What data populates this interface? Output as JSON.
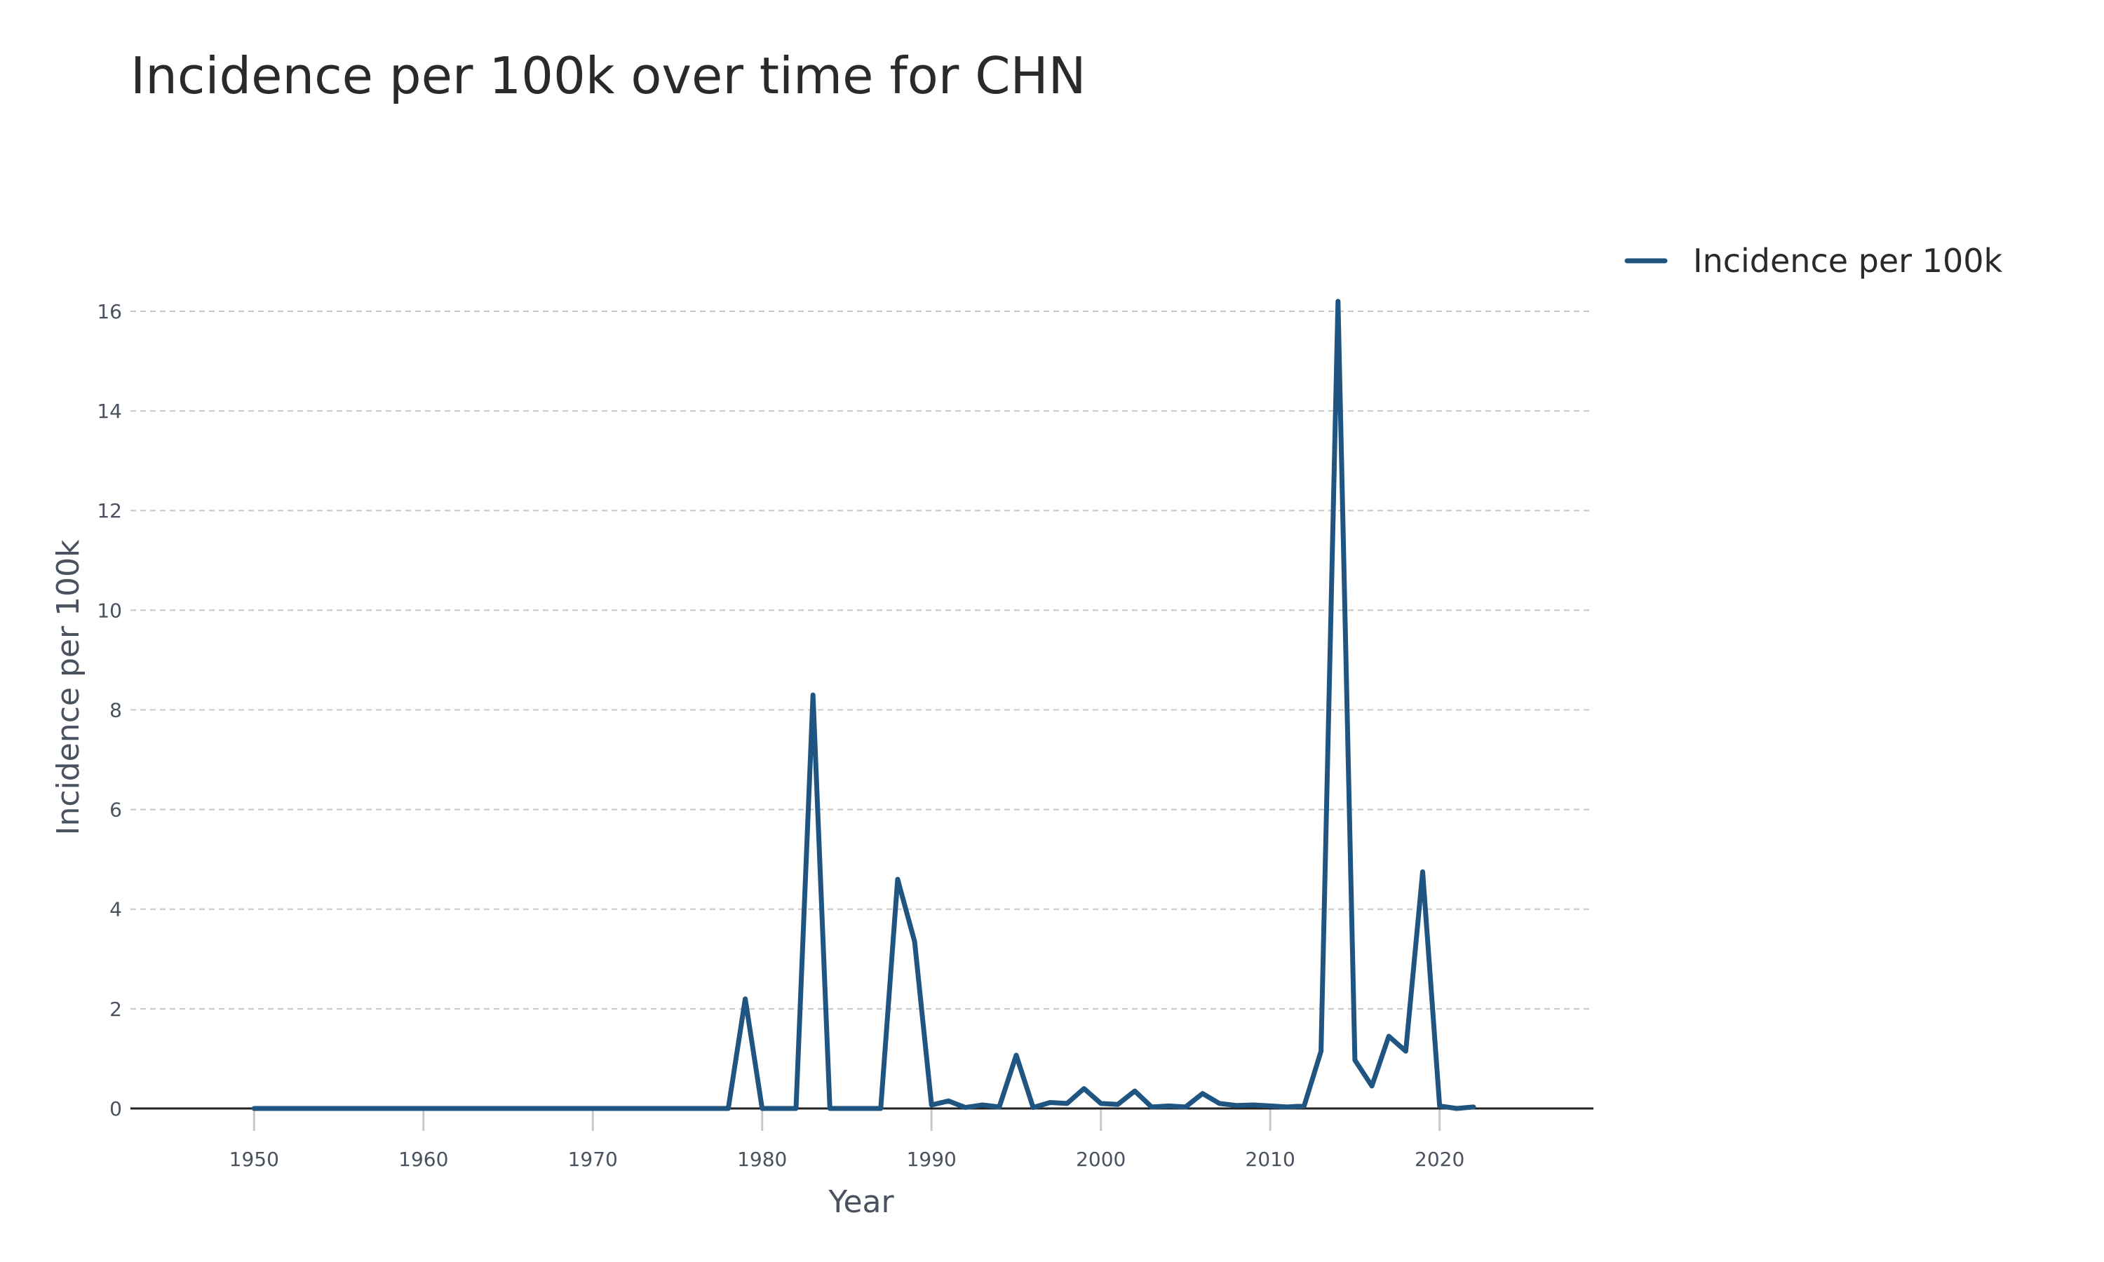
{
  "chart_data": {
    "type": "line",
    "title": "Incidence per 100k over time for CHN",
    "xlabel": "Year",
    "ylabel": "Incidence per 100k",
    "xlim": [
      1942.7,
      2029
    ],
    "ylim": [
      0,
      16.9
    ],
    "xticks": [
      1950,
      1960,
      1970,
      1980,
      1990,
      2000,
      2010,
      2020
    ],
    "yticks": [
      0,
      2,
      4,
      6,
      8,
      10,
      12,
      14,
      16
    ],
    "grid": true,
    "legend_position": "top-right",
    "line_color": "#1f5580",
    "series": [
      {
        "name": "Incidence per 100k",
        "x": [
          1950,
          1951,
          1952,
          1953,
          1954,
          1955,
          1956,
          1957,
          1958,
          1959,
          1960,
          1961,
          1962,
          1963,
          1964,
          1965,
          1966,
          1967,
          1968,
          1969,
          1970,
          1971,
          1972,
          1973,
          1974,
          1975,
          1976,
          1977,
          1978,
          1979,
          1980,
          1981,
          1982,
          1983,
          1984,
          1985,
          1986,
          1987,
          1988,
          1989,
          1990,
          1991,
          1992,
          1993,
          1994,
          1995,
          1996,
          1997,
          1998,
          1999,
          2000,
          2001,
          2002,
          2003,
          2004,
          2005,
          2006,
          2007,
          2008,
          2009,
          2010,
          2011,
          2012,
          2013,
          2014,
          2015,
          2016,
          2017,
          2018,
          2019,
          2020,
          2021,
          2022
        ],
        "y": [
          0,
          0,
          0,
          0,
          0,
          0,
          0,
          0,
          0,
          0,
          0,
          0,
          0,
          0,
          0,
          0,
          0,
          0,
          0,
          0,
          0,
          0,
          0,
          0,
          0,
          0,
          0,
          0,
          0,
          2.2,
          0,
          0,
          0,
          8.3,
          0,
          0,
          0,
          0,
          4.6,
          3.35,
          0.07,
          0.15,
          0.02,
          0.07,
          0.03,
          1.07,
          0.02,
          0.12,
          0.1,
          0.4,
          0.1,
          0.08,
          0.35,
          0.03,
          0.05,
          0.03,
          0.3,
          0.1,
          0.06,
          0.07,
          0.05,
          0.03,
          0.05,
          1.15,
          16.2,
          0.97,
          0.45,
          1.45,
          1.15,
          4.75,
          0.05,
          0,
          0.03
        ]
      }
    ]
  }
}
